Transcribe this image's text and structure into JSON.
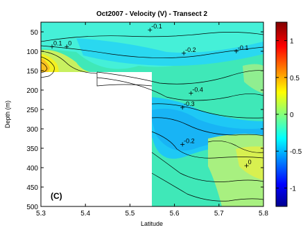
{
  "chart_data": {
    "type": "heatmap",
    "title": "Oct2007 - Velocity (V) - Transect 2",
    "xlabel": "Latitude",
    "ylabel": "Depth (m)",
    "xlim": [
      5.3,
      5.8
    ],
    "ylim": [
      500,
      25
    ],
    "x_ticks": [
      "5.3",
      "5.4",
      "5.5",
      "5.6",
      "5.7",
      "5.8"
    ],
    "y_ticks": [
      "50",
      "100",
      "150",
      "200",
      "250",
      "300",
      "350",
      "400",
      "450",
      "500"
    ],
    "y_tick_values": [
      50,
      100,
      150,
      200,
      250,
      300,
      350,
      400,
      450,
      500
    ],
    "panel_label": "(C)",
    "colorbar": {
      "ticks": [
        "1",
        "0.5",
        "0",
        "-0.5",
        "-1"
      ],
      "tick_values": [
        1,
        0.5,
        0,
        -0.5,
        -1
      ],
      "range": [
        -1.25,
        1.25
      ],
      "colormap": "jet"
    },
    "contour_labels": [
      {
        "text": "-0.1",
        "x": 5.545,
        "y": 45
      },
      {
        "text": "0.1",
        "x": 5.325,
        "y": 88
      },
      {
        "text": "0",
        "x": 5.358,
        "y": 88
      },
      {
        "text": "-0.2",
        "x": 5.621,
        "y": 105
      },
      {
        "text": "-0.1",
        "x": 5.739,
        "y": 100
      },
      {
        "text": "-0.4",
        "x": 5.637,
        "y": 208
      },
      {
        "text": "-0.3",
        "x": 5.618,
        "y": 245
      },
      {
        "text": "-0.2",
        "x": 5.618,
        "y": 340
      },
      {
        "text": "0",
        "x": 5.762,
        "y": 395
      }
    ],
    "no_data_region": {
      "x_from": 5.3,
      "x_to": 5.6,
      "depth_from": 150,
      "depth_to": 500
    }
  }
}
